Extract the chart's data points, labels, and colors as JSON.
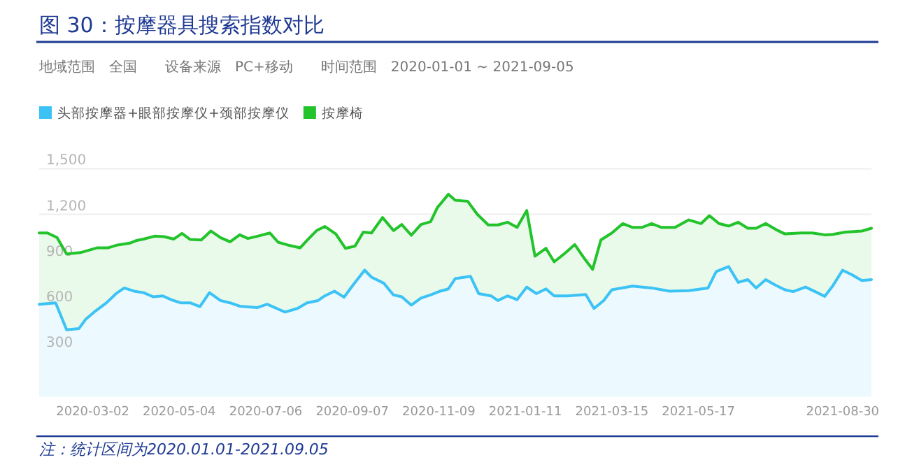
{
  "chart_data": {
    "type": "area",
    "title": "图 30：按摩器具搜索指数对比",
    "subtitle": "地域范围　全国　　设备来源　PC+移动　　时间范围　2020-01-01 ~ 2021-09-05",
    "annotations": [
      "注：统计区间为2020.01.01-2021.09.05"
    ],
    "xlim": [
      "2020-01-23",
      "2021-09-20"
    ],
    "xticks": [
      {
        "value": "2020-03-02",
        "label": "2020-03-02"
      },
      {
        "value": "2020-05-04",
        "label": "2020-05-04"
      },
      {
        "value": "2020-07-06",
        "label": "2020-07-06"
      },
      {
        "value": "2020-09-07",
        "label": "2020-09-07"
      },
      {
        "value": "2020-11-09",
        "label": "2020-11-09"
      },
      {
        "value": "2021-01-11",
        "label": "2021-01-11"
      },
      {
        "value": "2021-03-15",
        "label": "2021-03-15"
      },
      {
        "value": "2021-05-17",
        "label": "2021-05-17"
      },
      {
        "value": "2021-08-30",
        "label": "2021-08-30"
      }
    ],
    "ylim": [
      0,
      1500
    ],
    "yticks": [
      300,
      600,
      900,
      {
        "value": 1200,
        "label": "1,200"
      },
      {
        "value": 1500,
        "label": "1,500"
      }
    ],
    "grid": "y",
    "legend": "top left",
    "series": [
      {
        "name": "头部按摩器+眼部按摩仪+颈部按摩仪",
        "color": "#3cc3f5",
        "x": [
          "2020-01-23",
          "2020-02-04",
          "2020-02-12",
          "2020-02-21",
          "2020-02-26",
          "2020-03-03",
          "2020-03-12",
          "2020-03-19",
          "2020-03-25",
          "2020-04-01",
          "2020-04-08",
          "2020-04-15",
          "2020-04-22",
          "2020-04-28",
          "2020-05-05",
          "2020-05-12",
          "2020-05-19",
          "2020-05-26",
          "2020-06-03",
          "2020-06-10",
          "2020-06-17",
          "2020-06-30",
          "2020-07-07",
          "2020-07-14",
          "2020-07-20",
          "2020-07-29",
          "2020-08-05",
          "2020-08-13",
          "2020-08-18",
          "2020-08-25",
          "2020-09-01",
          "2020-09-08",
          "2020-09-16",
          "2020-09-21",
          "2020-09-30",
          "2020-10-07",
          "2020-10-13",
          "2020-10-20",
          "2020-10-27",
          "2020-11-03",
          "2020-11-10",
          "2020-11-16",
          "2020-11-21",
          "2020-12-02",
          "2020-12-08",
          "2020-12-17",
          "2020-12-22",
          "2020-12-29",
          "2021-01-05",
          "2021-01-12",
          "2021-01-19",
          "2021-01-26",
          "2021-02-01",
          "2021-02-11",
          "2021-02-24",
          "2021-03-02",
          "2021-03-09",
          "2021-03-15",
          "2021-03-30",
          "2021-04-13",
          "2021-04-26",
          "2021-05-10",
          "2021-05-24",
          "2021-05-30",
          "2021-06-08",
          "2021-06-15",
          "2021-06-22",
          "2021-06-28",
          "2021-07-05",
          "2021-07-12",
          "2021-07-19",
          "2021-07-25",
          "2021-08-03",
          "2021-08-10",
          "2021-08-17",
          "2021-08-23",
          "2021-08-30",
          "2021-09-06",
          "2021-09-13",
          "2021-09-20"
        ],
        "values": [
          608,
          617,
          439,
          448,
          510,
          556,
          617,
          678,
          715,
          694,
          684,
          657,
          663,
          638,
          617,
          617,
          592,
          684,
          632,
          617,
          595,
          586,
          608,
          580,
          556,
          580,
          617,
          632,
          663,
          694,
          654,
          740,
          832,
          786,
          746,
          669,
          657,
          602,
          648,
          669,
          694,
          709,
          777,
          792,
          678,
          663,
          632,
          663,
          638,
          721,
          678,
          709,
          663,
          663,
          672,
          580,
          632,
          703,
          727,
          715,
          694,
          697,
          715,
          823,
          856,
          752,
          770,
          715,
          770,
          734,
          703,
          691,
          721,
          691,
          660,
          731,
          832,
          801,
          764,
          770
        ]
      },
      {
        "name": "按摩椅",
        "color": "#22c32b",
        "x": [
          "2020-01-23",
          "2020-01-29",
          "2020-02-05",
          "2020-02-12",
          "2020-02-22",
          "2020-03-05",
          "2020-03-13",
          "2020-03-20",
          "2020-03-29",
          "2020-04-03",
          "2020-04-08",
          "2020-04-16",
          "2020-04-23",
          "2020-04-30",
          "2020-05-06",
          "2020-05-12",
          "2020-05-20",
          "2020-05-27",
          "2020-06-03",
          "2020-06-10",
          "2020-06-17",
          "2020-06-23",
          "2020-06-30",
          "2020-07-09",
          "2020-07-15",
          "2020-07-22",
          "2020-07-31",
          "2020-08-05",
          "2020-08-12",
          "2020-08-18",
          "2020-08-26",
          "2020-09-02",
          "2020-09-09",
          "2020-09-15",
          "2020-09-21",
          "2020-09-29",
          "2020-10-07",
          "2020-10-13",
          "2020-10-20",
          "2020-10-27",
          "2020-11-03",
          "2020-11-08",
          "2020-11-11",
          "2020-11-16",
          "2020-11-21",
          "2020-11-30",
          "2020-12-07",
          "2020-12-15",
          "2020-12-22",
          "2020-12-29",
          "2021-01-05",
          "2021-01-12",
          "2021-01-18",
          "2021-01-26",
          "2021-02-01",
          "2021-02-09",
          "2021-02-16",
          "2021-02-23",
          "2021-03-01",
          "2021-03-07",
          "2021-03-15",
          "2021-03-23",
          "2021-03-30",
          "2021-04-06",
          "2021-04-13",
          "2021-04-20",
          "2021-04-30",
          "2021-05-10",
          "2021-05-19",
          "2021-05-25",
          "2021-06-01",
          "2021-06-08",
          "2021-06-15",
          "2021-06-22",
          "2021-06-28",
          "2021-07-05",
          "2021-07-12",
          "2021-07-19",
          "2021-07-31",
          "2021-08-08",
          "2021-08-17",
          "2021-08-23",
          "2021-09-01",
          "2021-09-13",
          "2021-09-20"
        ],
        "values": [
          1077,
          1077,
          1047,
          939,
          948,
          979,
          979,
          998,
          1010,
          1028,
          1037,
          1056,
          1053,
          1037,
          1074,
          1034,
          1031,
          1090,
          1047,
          1019,
          1065,
          1041,
          1056,
          1077,
          1016,
          998,
          979,
          1028,
          1093,
          1120,
          1071,
          976,
          991,
          1083,
          1077,
          1179,
          1093,
          1133,
          1062,
          1133,
          1151,
          1246,
          1277,
          1332,
          1292,
          1286,
          1200,
          1130,
          1130,
          1148,
          1114,
          1225,
          924,
          976,
          887,
          945,
          1001,
          909,
          838,
          1031,
          1077,
          1139,
          1114,
          1114,
          1139,
          1114,
          1114,
          1163,
          1139,
          1191,
          1139,
          1123,
          1148,
          1108,
          1108,
          1139,
          1102,
          1071,
          1077,
          1077,
          1065,
          1068,
          1083,
          1090,
          1108
        ]
      }
    ]
  }
}
